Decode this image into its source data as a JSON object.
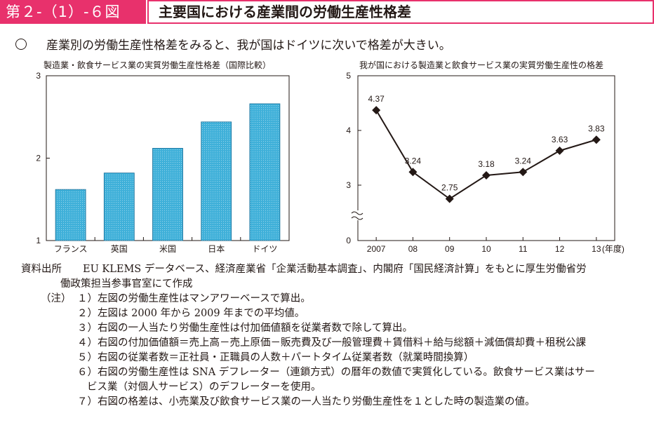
{
  "header": {
    "figure_number": "第２-（1）-６図",
    "title": "主要国における産業間の労働生産性格差"
  },
  "summary": "産業別の労働生産性格差をみると、我が国はドイツに次いで格差が大きい。",
  "chart_data": [
    {
      "type": "bar",
      "title": "製造業・飲食サービス業の実質労働生産性格差（国際比較）",
      "categories": [
        "フランス",
        "英国",
        "米国",
        "日本",
        "ドイツ"
      ],
      "values": [
        1.62,
        1.82,
        2.12,
        2.44,
        2.66
      ],
      "ylim": [
        1,
        3
      ],
      "yticks": [
        "1",
        "2",
        "3"
      ],
      "fill_color": "#3fb0d9",
      "grid": false
    },
    {
      "type": "line",
      "title": "我が国における製造業と飲食サービス業の実質労働生産性の格差",
      "x": [
        "2007",
        "08",
        "09",
        "10",
        "11",
        "12",
        "13"
      ],
      "x_unit": "(年度)",
      "values": [
        4.37,
        3.24,
        2.75,
        3.18,
        3.24,
        3.63,
        3.83
      ],
      "data_labels": [
        "4.37",
        "3.24",
        "2.75",
        "3.18",
        "3.24",
        "3.63",
        "3.83"
      ],
      "yticks": [
        "0",
        "3",
        "4",
        "5"
      ],
      "ylim": [
        0,
        5
      ],
      "axis_break": "between 0 and 3",
      "marker": "diamond",
      "line_color": "#231815",
      "grid": false
    }
  ],
  "notes": {
    "source_label": "資料出所",
    "source_line1": "EU KLEMS データベース、経済産業省「企業活動基本調査」、内閣府「国民経済計算」をもとに厚生労働省労",
    "source_line2": "働政策担当参事官室にて作成",
    "note_label": "（注）",
    "items": [
      "１）左図の労働生産性はマンアワーベースで算出。",
      "２）左図は 2000 年から 2009 年までの平均値。",
      "３）右図の一人当たり労働生産性は付加価値額を従業者数で除して算出。",
      "４）右図の付加価値額＝売上高－売上原価－販売費及び一般管理費＋賃借料＋給与総額＋減価償却費＋租税公課",
      "５）右図の従業者数＝正社員・正職員の人数＋パートタイム従業者数（就業時間換算）",
      "６）右図の労働生産性は SNA デフレーター（連鎖方式）の暦年の数値で実質化している。飲食サービス業はサー",
      "ビス業（対個人サービス）のデフレーターを使用。",
      "７）右図の格差は、小売業及び飲食サービス業の一人当たり労働生産性を１とした時の製造業の値。"
    ]
  }
}
